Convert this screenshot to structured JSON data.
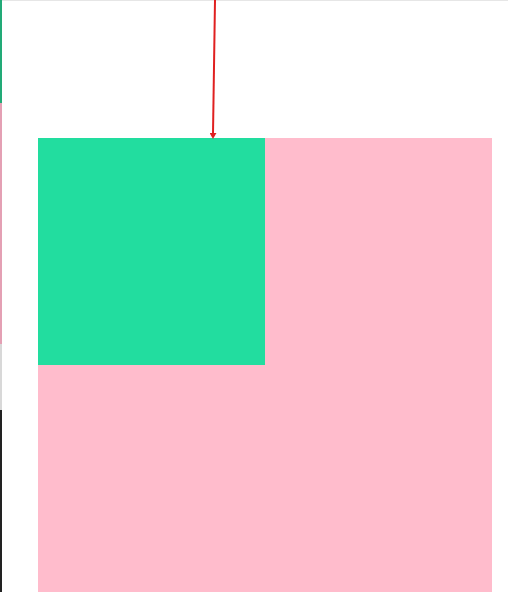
{
  "colors": {
    "background": "#ffffff",
    "top_border": "#e6e6e6",
    "outer_square": "#ffbccc",
    "inner_square": "#22dd9f",
    "arrow": "#e02020",
    "strip_green": "#22aa77",
    "strip_pink": "#e4a0b4",
    "strip_light": "#d8d8d8",
    "strip_dark": "#222222"
  },
  "shapes": {
    "outer_square": "pink-square",
    "inner_square": "green-square",
    "arrow": "down-arrow"
  }
}
